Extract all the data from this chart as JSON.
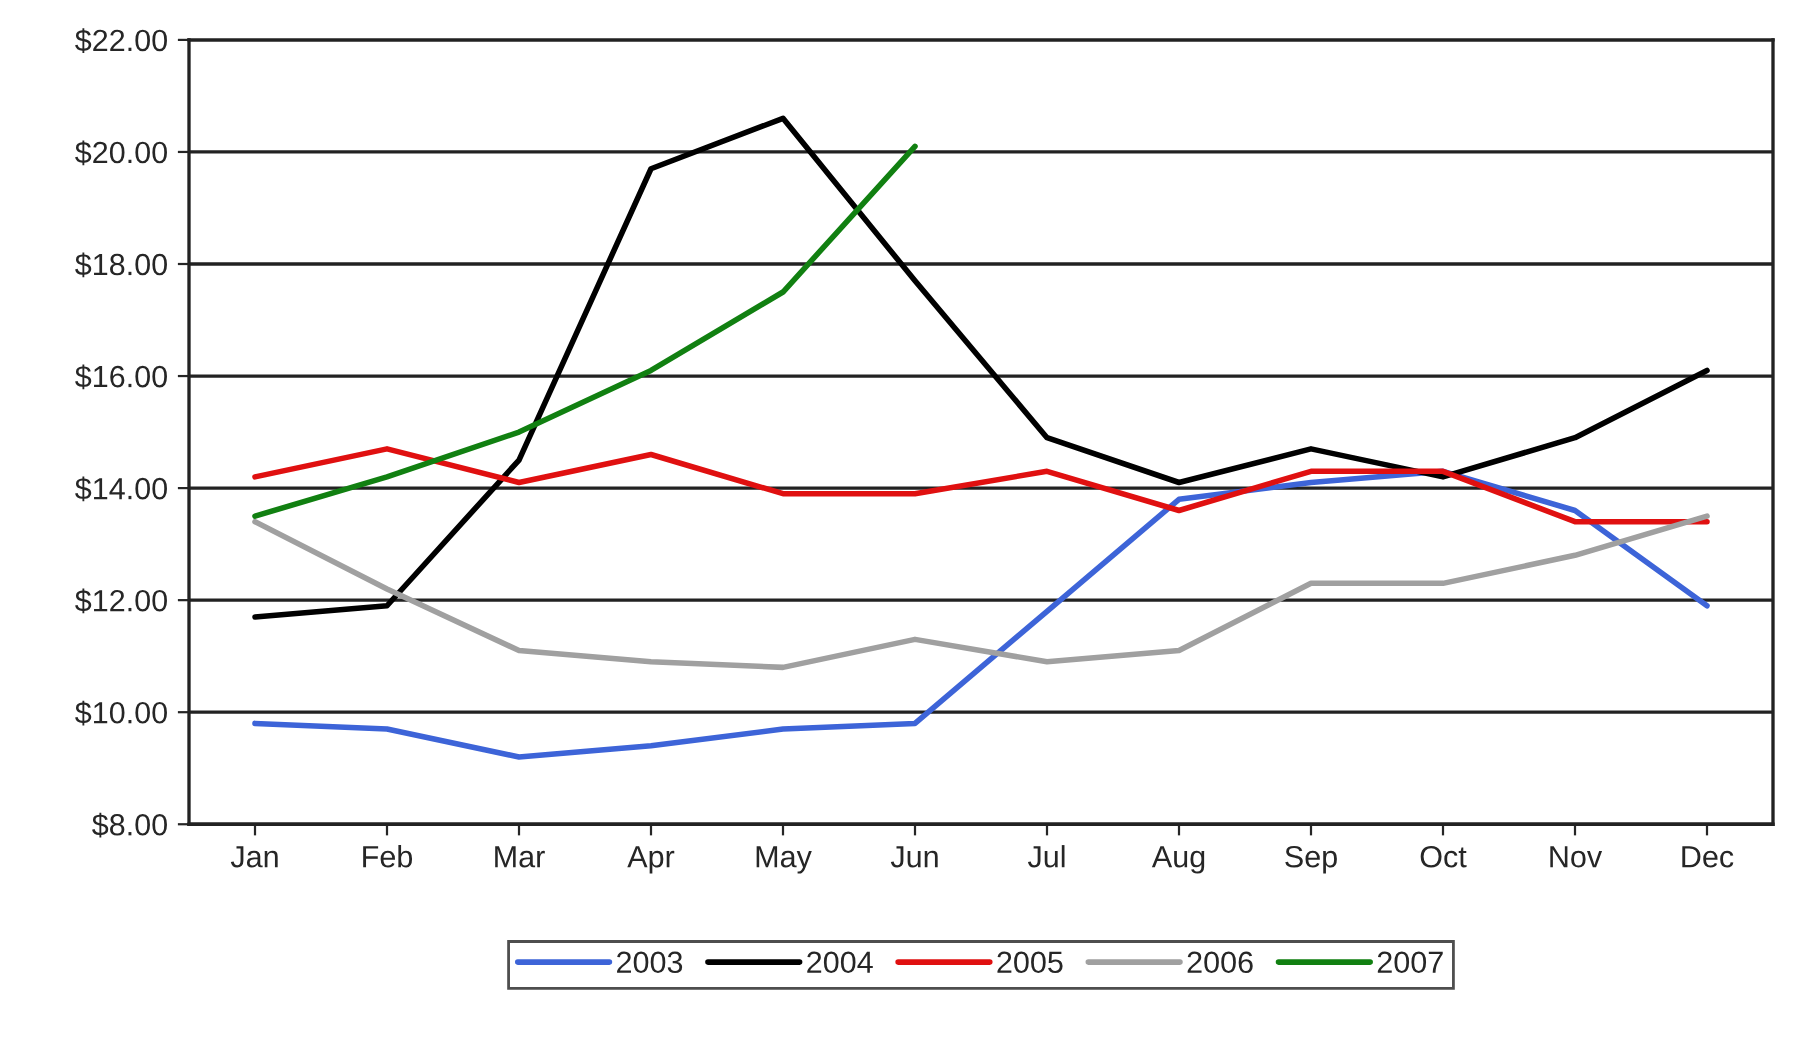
{
  "chart_data": {
    "type": "line",
    "categories": [
      "Jan",
      "Feb",
      "Mar",
      "Apr",
      "May",
      "Jun",
      "Jul",
      "Aug",
      "Sep",
      "Oct",
      "Nov",
      "Dec"
    ],
    "series": [
      {
        "name": "2003",
        "color": "#3d64d8",
        "values": [
          9.8,
          9.7,
          9.2,
          9.4,
          9.7,
          9.8,
          11.8,
          13.8,
          14.1,
          14.3,
          13.6,
          11.9
        ]
      },
      {
        "name": "2004",
        "color": "#000000",
        "values": [
          11.7,
          11.9,
          14.5,
          19.7,
          20.6,
          17.7,
          14.9,
          14.1,
          14.7,
          14.2,
          14.9,
          16.1
        ]
      },
      {
        "name": "2005",
        "color": "#e01010",
        "values": [
          14.2,
          14.7,
          14.1,
          14.6,
          13.9,
          13.9,
          14.3,
          13.6,
          14.3,
          14.3,
          13.4,
          13.4
        ]
      },
      {
        "name": "2006",
        "color": "#a0a0a0",
        "values": [
          13.4,
          12.2,
          11.1,
          10.9,
          10.8,
          11.3,
          10.9,
          11.1,
          12.3,
          12.3,
          12.8,
          13.5
        ]
      },
      {
        "name": "2007",
        "color": "#118011",
        "values": [
          13.5,
          14.2,
          15.0,
          16.1,
          17.5,
          20.1,
          null,
          null,
          null,
          null,
          null,
          null
        ]
      }
    ],
    "ylim": [
      8,
      22
    ],
    "yticks": [
      {
        "value": 8,
        "label": "$8.00"
      },
      {
        "value": 10,
        "label": "$10.00"
      },
      {
        "value": 12,
        "label": "$12.00"
      },
      {
        "value": 14,
        "label": "$14.00"
      },
      {
        "value": 16,
        "label": "$16.00"
      },
      {
        "value": 18,
        "label": "$18.00"
      },
      {
        "value": 20,
        "label": "$20.00"
      },
      {
        "value": 22,
        "label": "$22.00"
      }
    ],
    "grid": "y",
    "legend": "bottom",
    "marker": "none",
    "line_style": "solid"
  }
}
